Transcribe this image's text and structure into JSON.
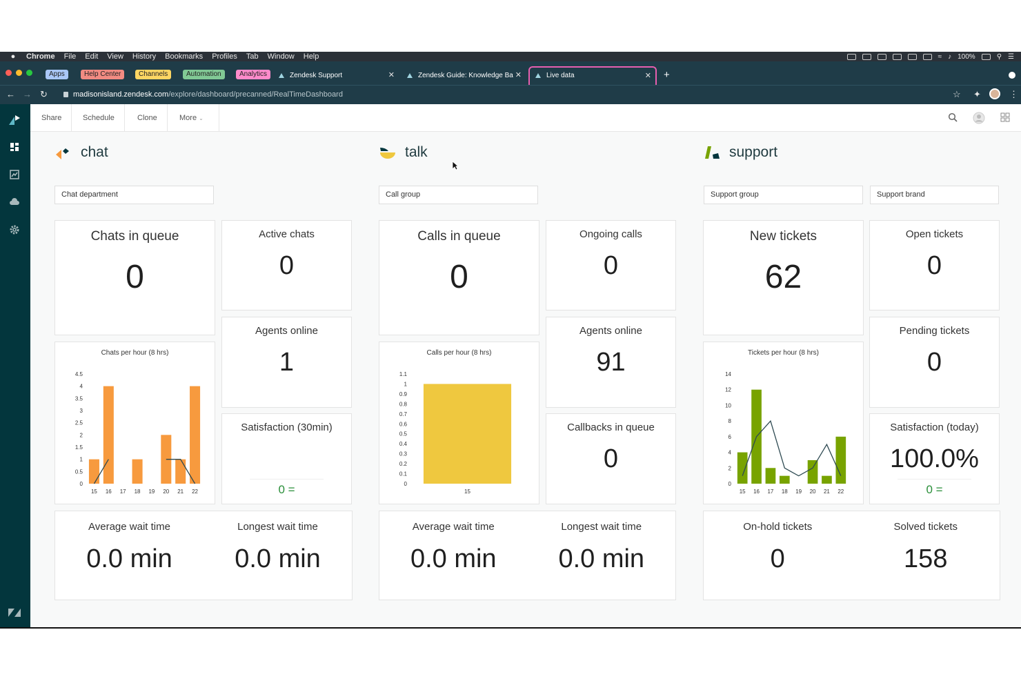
{
  "menubar": {
    "items": [
      "Chrome",
      "File",
      "Edit",
      "View",
      "History",
      "Bookmarks",
      "Profiles",
      "Tab",
      "Window",
      "Help"
    ],
    "battery": "100%"
  },
  "bookmarks": [
    {
      "label": "Apps",
      "color": "#a9c7f7"
    },
    {
      "label": "Help Center",
      "color": "#f28b82"
    },
    {
      "label": "Channels",
      "color": "#fdd663"
    },
    {
      "label": "Automation",
      "color": "#81c995"
    },
    {
      "label": "Analytics",
      "color": "#ff8bcb"
    }
  ],
  "tabs": [
    {
      "label": "Zendesk Support"
    },
    {
      "label": "Zendesk Guide: Knowledge Ba"
    },
    {
      "label": "Live data"
    }
  ],
  "address": {
    "host": "madisonisland.zendesk.com",
    "path": "/explore/dashboard/precanned/RealTimeDashboard"
  },
  "toolbar": {
    "share": "Share",
    "schedule": "Schedule",
    "clone": "Clone",
    "more": "More"
  },
  "chat": {
    "heading": "chat",
    "filter": "Chat department",
    "chats_in_queue": {
      "label": "Chats in queue",
      "value": "0"
    },
    "active_chats": {
      "label": "Active chats",
      "value": "0"
    },
    "agents_online": {
      "label": "Agents online",
      "value": "1"
    },
    "satisfaction": {
      "label": "Satisfaction (30min)",
      "value": "0 ="
    },
    "chart_title": "Chats per hour (8 hrs)",
    "avg_wait": {
      "label": "Average wait time",
      "value": "0.0 min"
    },
    "longest_wait": {
      "label": "Longest wait time",
      "value": "0.0 min"
    }
  },
  "talk": {
    "heading": "talk",
    "filter": "Call group",
    "calls_in_queue": {
      "label": "Calls in queue",
      "value": "0"
    },
    "ongoing_calls": {
      "label": "Ongoing calls",
      "value": "0"
    },
    "agents_online": {
      "label": "Agents online",
      "value": "91"
    },
    "callbacks": {
      "label": "Callbacks in queue",
      "value": "0"
    },
    "chart_title": "Calls per hour (8 hrs)",
    "avg_wait": {
      "label": "Average wait time",
      "value": "0.0 min"
    },
    "longest_wait": {
      "label": "Longest wait time",
      "value": "0.0 min"
    }
  },
  "support": {
    "heading": "support",
    "filter_group": "Support group",
    "filter_brand": "Support brand",
    "new_tickets": {
      "label": "New tickets",
      "value": "62"
    },
    "open_tickets": {
      "label": "Open tickets",
      "value": "0"
    },
    "pending_tickets": {
      "label": "Pending tickets",
      "value": "0"
    },
    "satisfaction": {
      "label": "Satisfaction (today)",
      "value": "100.0%",
      "score": "0 ="
    },
    "chart_title": "Tickets per hour (8 hrs)",
    "onhold": {
      "label": "On-hold tickets",
      "value": "0"
    },
    "solved": {
      "label": "Solved tickets",
      "value": "158"
    }
  },
  "chart_data": [
    {
      "type": "bar",
      "title": "Chats per hour (8 hrs)",
      "categories": [
        "15",
        "16",
        "17",
        "18",
        "19",
        "20",
        "21",
        "22"
      ],
      "series": [
        {
          "values": [
            1,
            4,
            0,
            1,
            0,
            2,
            1,
            4
          ]
        },
        {
          "type": "line",
          "values": [
            0,
            1,
            null,
            null,
            null,
            1,
            1,
            0
          ]
        }
      ],
      "yticks": [
        "0",
        "0.5",
        "1",
        "1.5",
        "2",
        "2.5",
        "3",
        "3.5",
        "4",
        "4.5"
      ],
      "ylim": [
        0,
        4.5
      ],
      "color": "#f79a3e"
    },
    {
      "type": "bar",
      "title": "Calls per hour (8 hrs)",
      "categories": [
        "15"
      ],
      "series": [
        {
          "values": [
            1
          ]
        }
      ],
      "yticks": [
        "0",
        "0.1",
        "0.2",
        "0.3",
        "0.4",
        "0.5",
        "0.6",
        "0.7",
        "0.8",
        "0.9",
        "1",
        "1.1"
      ],
      "ylim": [
        0,
        1.1
      ],
      "color": "#efc83f"
    },
    {
      "type": "bar",
      "title": "Tickets per hour (8 hrs)",
      "categories": [
        "15",
        "16",
        "17",
        "18",
        "19",
        "20",
        "21",
        "22"
      ],
      "series": [
        {
          "values": [
            4,
            12,
            2,
            1,
            0,
            3,
            1,
            6
          ]
        },
        {
          "type": "line",
          "values": [
            1,
            6,
            8,
            2,
            1,
            2,
            5,
            1
          ]
        }
      ],
      "yticks": [
        "0",
        "2",
        "4",
        "6",
        "8",
        "10",
        "12",
        "14"
      ],
      "ylim": [
        0,
        14
      ],
      "color": "#78a300"
    }
  ]
}
